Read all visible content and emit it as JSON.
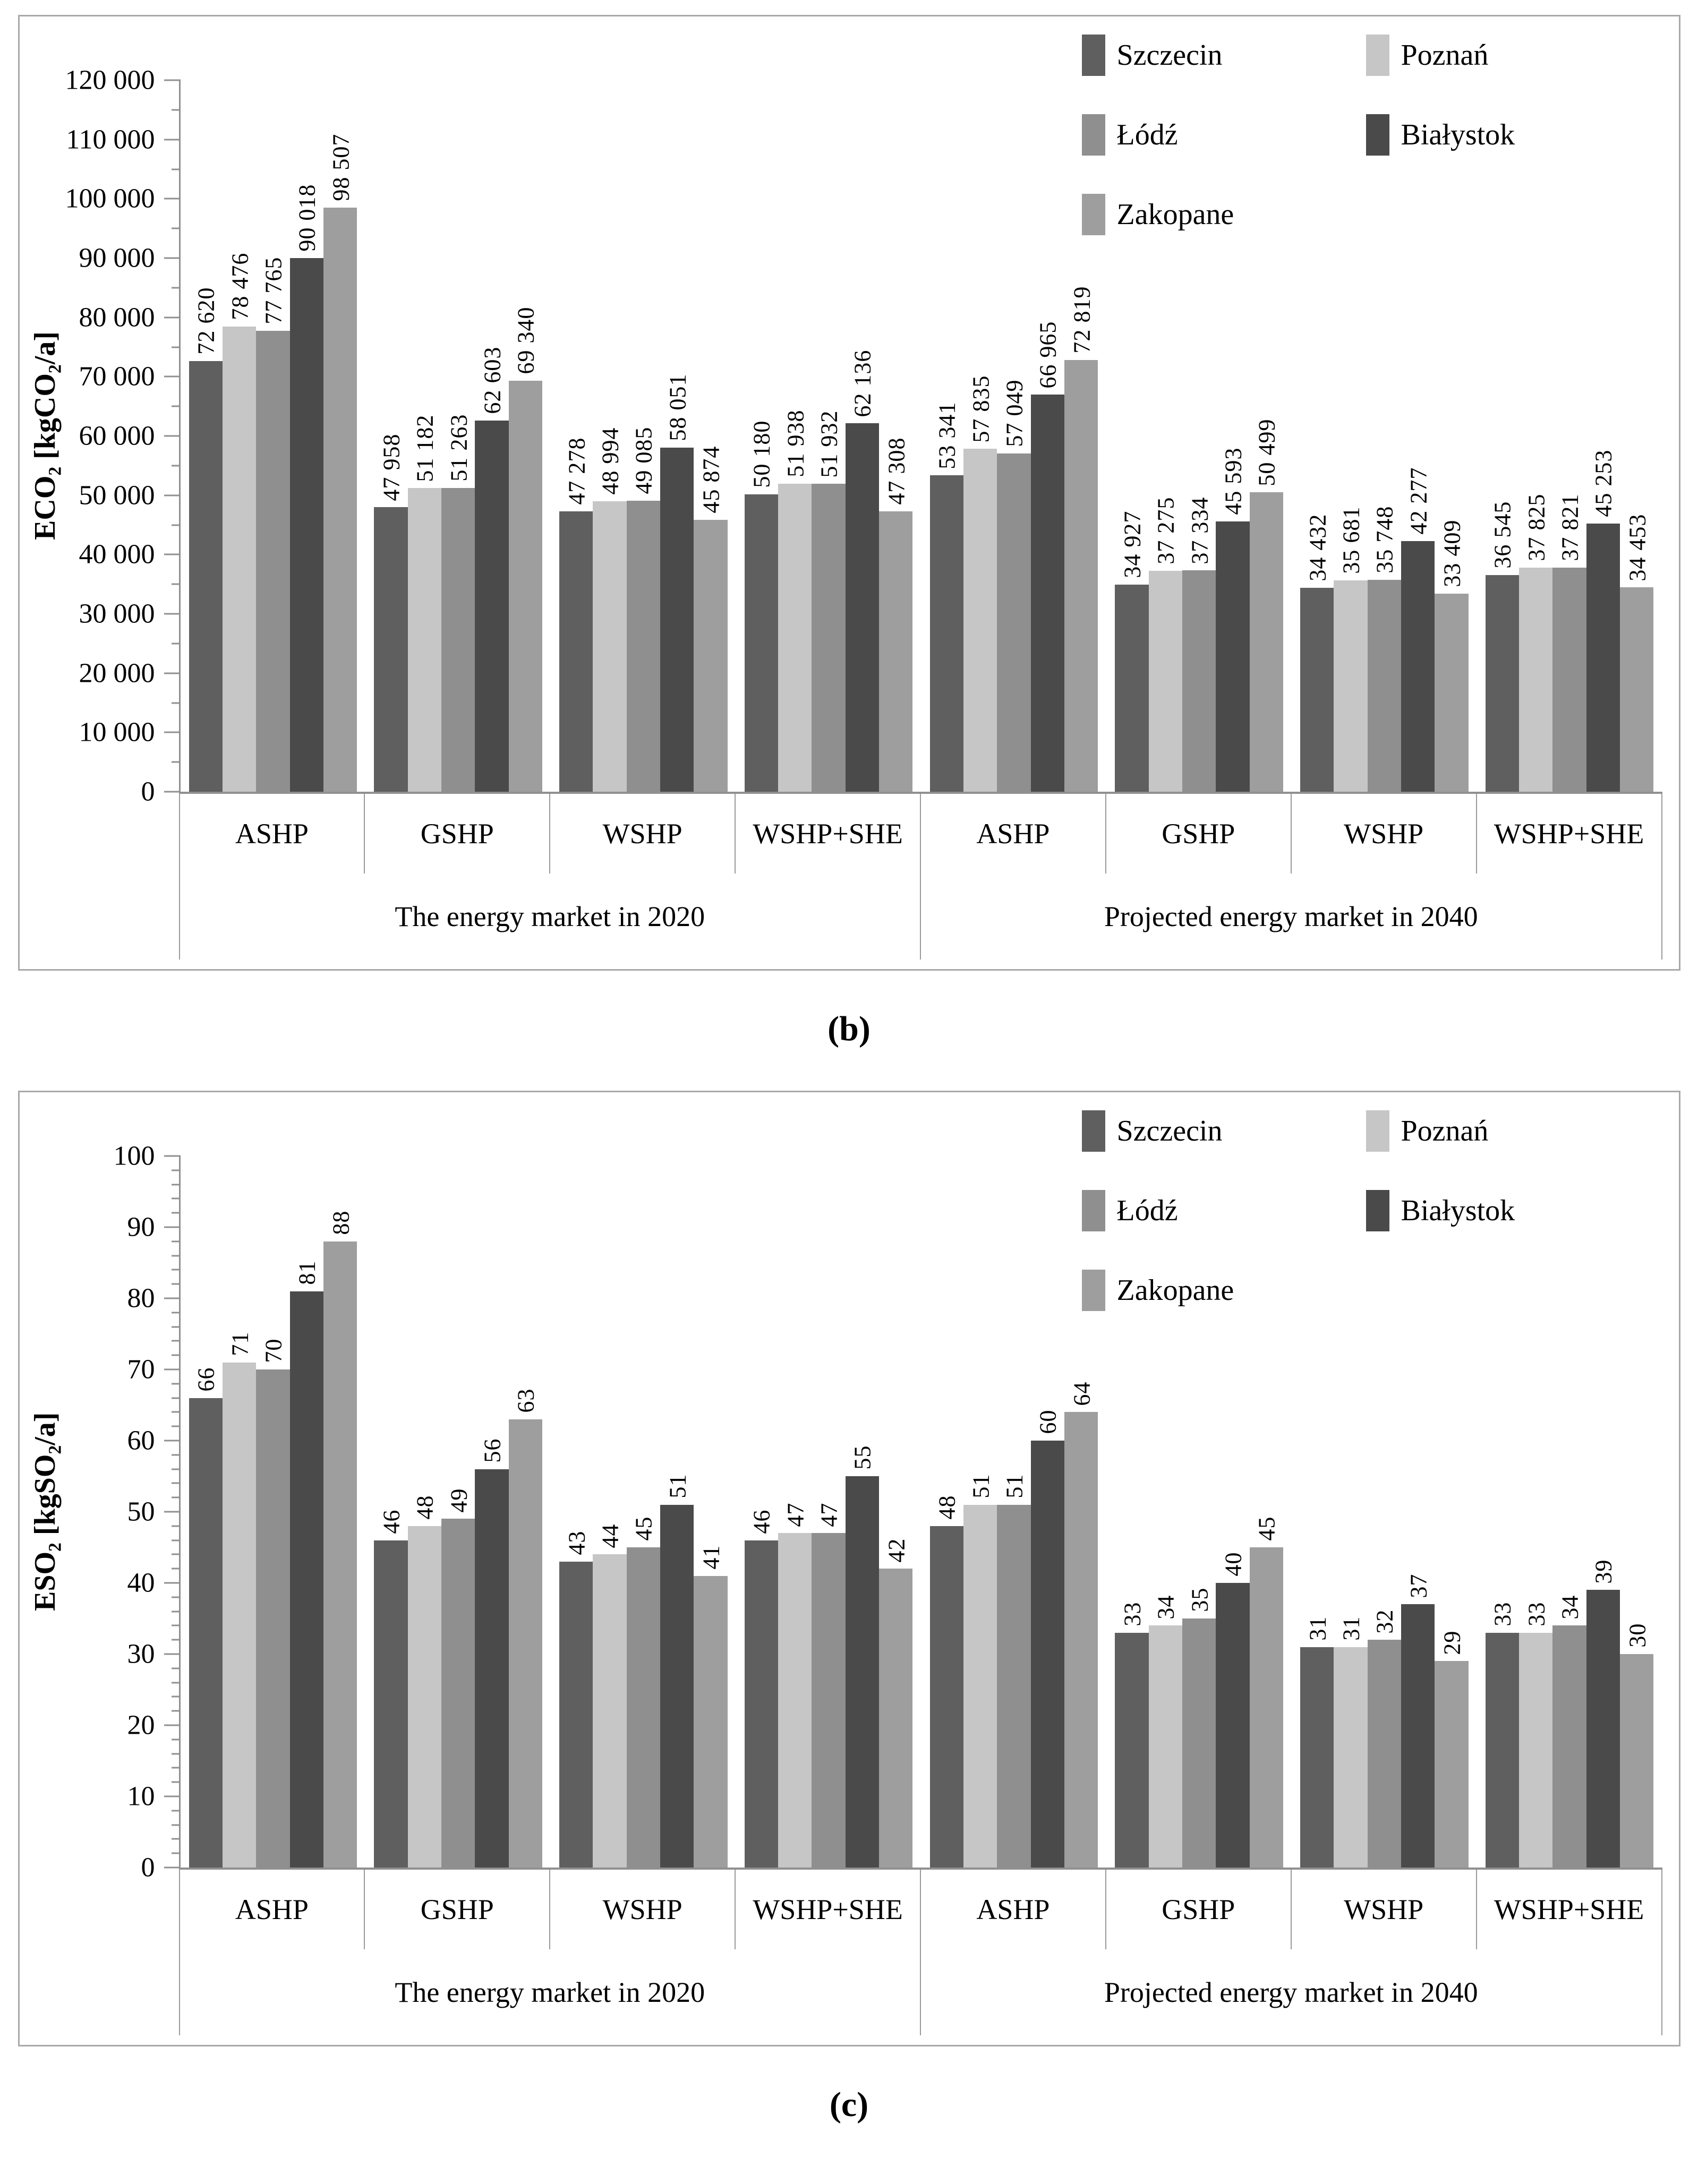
{
  "page": {
    "background": "#ffffff"
  },
  "legend": {
    "items": [
      {
        "label": "Szczecin",
        "color": "#5f5f5f"
      },
      {
        "label": "Poznań",
        "color": "#c6c6c6"
      },
      {
        "label": "Łódź",
        "color": "#8f8f8f"
      },
      {
        "label": "Białystok",
        "color": "#4a4a4a"
      },
      {
        "label": "Zakopane",
        "color": "#9e9e9e"
      }
    ]
  },
  "chart_data": [
    {
      "type": "bar",
      "caption": "(b)",
      "ylabel": "ECO₂ [kgCO₂/a]",
      "ylim": [
        0,
        120000
      ],
      "ytick_step": 10000,
      "yminor_step": 5000,
      "grid": false,
      "legend_position": "top-right",
      "ytick_labels": [
        "0",
        "10 000",
        "20 000",
        "30 000",
        "40 000",
        "50 000",
        "60 000",
        "70 000",
        "80 000",
        "90 000",
        "100 000",
        "110 000",
        "120 000"
      ],
      "sections": [
        {
          "label": "The energy market in 2020",
          "groups": [
            "ASHP",
            "GSHP",
            "WSHP",
            "WSHP+SHE"
          ]
        },
        {
          "label": "Projected energy market in 2040",
          "groups": [
            "ASHP",
            "GSHP",
            "WSHP",
            "WSHP+SHE"
          ]
        }
      ],
      "series": [
        {
          "name": "Szczecin",
          "color": "#5f5f5f",
          "values": [
            72620,
            47958,
            47278,
            50180,
            53341,
            34927,
            34432,
            36545
          ]
        },
        {
          "name": "Poznań",
          "color": "#c6c6c6",
          "values": [
            78476,
            51182,
            48994,
            51938,
            57835,
            37275,
            35681,
            37825
          ]
        },
        {
          "name": "Łódź",
          "color": "#8f8f8f",
          "values": [
            77765,
            51263,
            49085,
            51932,
            57049,
            37334,
            35748,
            37821
          ]
        },
        {
          "name": "Białystok",
          "color": "#4a4a4a",
          "values": [
            90018,
            62603,
            58051,
            62136,
            66965,
            45593,
            42277,
            45253
          ]
        },
        {
          "name": "Zakopane",
          "color": "#9e9e9e",
          "values": [
            98507,
            69340,
            45874,
            47308,
            72819,
            50499,
            33409,
            34453
          ]
        }
      ]
    },
    {
      "type": "bar",
      "caption": "(c)",
      "ylabel": "ESO₂ [kgSO₂/a]",
      "ylim": [
        0,
        100
      ],
      "ytick_step": 10,
      "yminor_step": 2,
      "grid": false,
      "legend_position": "top-right",
      "ytick_labels": [
        "0",
        "10",
        "20",
        "30",
        "40",
        "50",
        "60",
        "70",
        "80",
        "90",
        "100"
      ],
      "sections": [
        {
          "label": "The energy market in 2020",
          "groups": [
            "ASHP",
            "GSHP",
            "WSHP",
            "WSHP+SHE"
          ]
        },
        {
          "label": "Projected energy market in 2040",
          "groups": [
            "ASHP",
            "GSHP",
            "WSHP",
            "WSHP+SHE"
          ]
        }
      ],
      "series": [
        {
          "name": "Szczecin",
          "color": "#5f5f5f",
          "values": [
            66,
            46,
            43,
            46,
            48,
            33,
            31,
            33
          ]
        },
        {
          "name": "Poznań",
          "color": "#c6c6c6",
          "values": [
            71,
            48,
            44,
            47,
            51,
            34,
            31,
            33
          ]
        },
        {
          "name": "Łódź",
          "color": "#8f8f8f",
          "values": [
            70,
            49,
            45,
            47,
            51,
            35,
            32,
            34
          ]
        },
        {
          "name": "Białystok",
          "color": "#4a4a4a",
          "values": [
            81,
            56,
            51,
            55,
            60,
            40,
            37,
            39
          ]
        },
        {
          "name": "Zakopane",
          "color": "#9e9e9e",
          "values": [
            88,
            63,
            41,
            42,
            64,
            45,
            29,
            30
          ]
        }
      ]
    }
  ]
}
